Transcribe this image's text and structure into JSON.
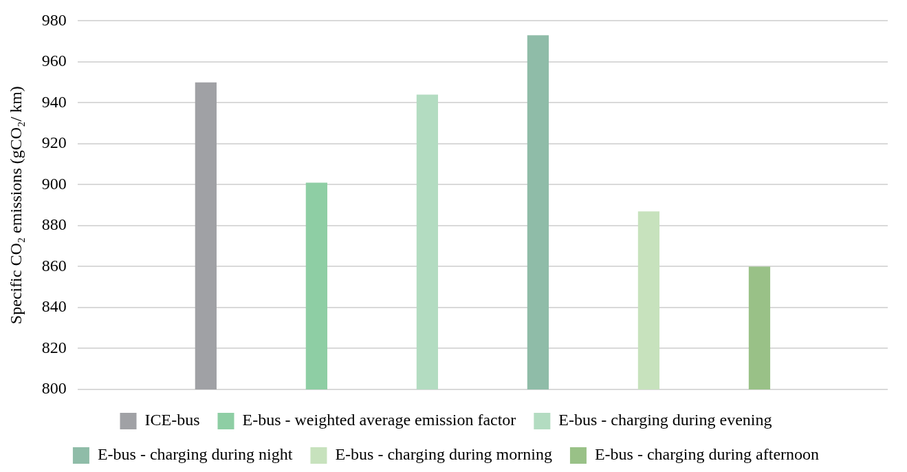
{
  "chart_data": {
    "type": "bar",
    "ylabel": "Specific CO₂ emissions (gCO₂/ km)",
    "categories": [
      null
    ],
    "series": [
      {
        "name": "ICE-bus",
        "color": "#a0a1a5",
        "values": [
          950
        ]
      },
      {
        "name": "E-bus - weighted average emission factor",
        "color": "#8ecea4",
        "values": [
          901
        ]
      },
      {
        "name": "E-bus - charging during evening",
        "color": "#b3dcc1",
        "values": [
          944
        ]
      },
      {
        "name": "E-bus - charging during night",
        "color": "#8fbca8",
        "values": [
          973
        ]
      },
      {
        "name": "E-bus - charging during morning",
        "color": "#c7e2bd",
        "values": [
          887
        ]
      },
      {
        "name": "E-bus - charging during afternoon",
        "color": "#99c187",
        "values": [
          860
        ]
      }
    ],
    "ylim": [
      800,
      980
    ],
    "yticks": [
      800,
      820,
      840,
      860,
      880,
      900,
      920,
      940,
      960,
      980
    ],
    "grid": "y",
    "legend": "bottom",
    "tick_labels": "y"
  }
}
